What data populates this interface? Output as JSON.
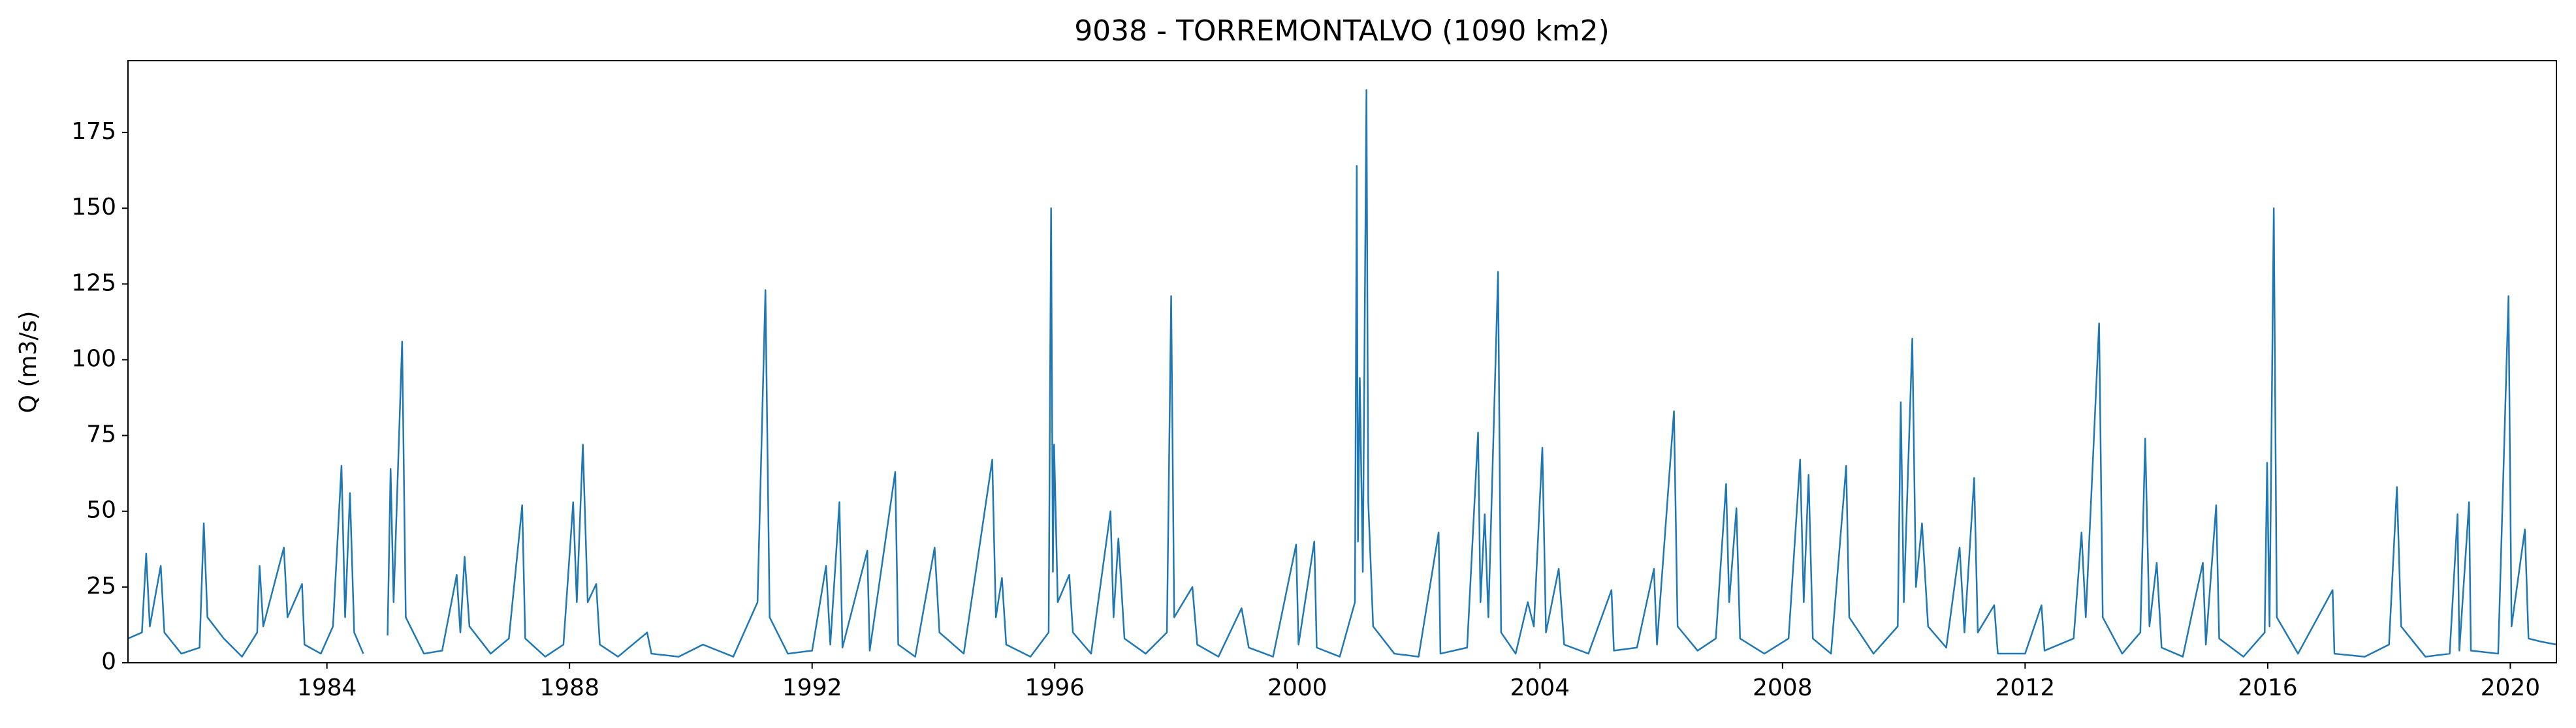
{
  "chart_data": {
    "type": "line",
    "title": "9038 - TORREMONTALVO (1090 km2)",
    "y_label": "Q (m3/s)",
    "xlim": [
      1980.72,
      2020.76
    ],
    "xticks": [
      1984,
      1988,
      1992,
      1996,
      2000,
      2004,
      2008,
      2012,
      2016,
      2020
    ],
    "ylim": [
      0,
      198.7
    ],
    "yticks": [
      0,
      25,
      50,
      75,
      100,
      125,
      150,
      175
    ],
    "grid": false,
    "series": [
      {
        "name": "Q",
        "color": "#1f77b4",
        "x": [
          1980.72,
          1980.95,
          1981.02,
          1981.08,
          1981.26,
          1981.32,
          1981.6,
          1981.9,
          1981.97,
          1982.03,
          1982.3,
          1982.6,
          1982.85,
          1982.89,
          1982.95,
          1983.29,
          1983.35,
          1983.59,
          1983.63,
          1983.9,
          1984.1,
          1984.24,
          1984.3,
          1984.38,
          1984.45,
          1984.6,
          1984.8,
          1985.0,
          1985.05,
          1985.1,
          1985.24,
          1985.3,
          1985.6,
          1985.9,
          1986.14,
          1986.2,
          1986.27,
          1986.35,
          1986.7,
          1987.0,
          1987.22,
          1987.27,
          1987.6,
          1987.9,
          1988.06,
          1988.12,
          1988.22,
          1988.3,
          1988.44,
          1988.5,
          1988.8,
          1989.28,
          1989.35,
          1989.8,
          1990.2,
          1990.7,
          1991.1,
          1991.23,
          1991.3,
          1991.6,
          1992.0,
          1992.23,
          1992.3,
          1992.45,
          1992.5,
          1992.91,
          1992.95,
          1993.37,
          1993.42,
          1993.7,
          1994.02,
          1994.1,
          1994.5,
          1994.97,
          1995.03,
          1995.13,
          1995.2,
          1995.6,
          1995.9,
          1995.94,
          1995.97,
          1995.99,
          1996.05,
          1996.24,
          1996.3,
          1996.6,
          1996.92,
          1996.97,
          1997.05,
          1997.15,
          1997.5,
          1997.85,
          1997.92,
          1997.97,
          1998.27,
          1998.35,
          1998.7,
          1999.08,
          1999.2,
          1999.6,
          1999.98,
          2000.02,
          2000.28,
          2000.32,
          2000.7,
          2000.95,
          2000.98,
          2001.0,
          2001.03,
          2001.08,
          2001.14,
          2001.17,
          2001.25,
          2001.6,
          2002.0,
          2002.33,
          2002.36,
          2002.8,
          2002.98,
          2003.02,
          2003.09,
          2003.15,
          2003.31,
          2003.36,
          2003.6,
          2003.8,
          2003.9,
          2004.04,
          2004.1,
          2004.31,
          2004.4,
          2004.8,
          2005.18,
          2005.22,
          2005.6,
          2005.88,
          2005.93,
          2006.21,
          2006.27,
          2006.6,
          2006.9,
          2007.07,
          2007.12,
          2007.24,
          2007.3,
          2007.7,
          2008.1,
          2008.29,
          2008.35,
          2008.43,
          2008.5,
          2008.8,
          2009.05,
          2009.1,
          2009.5,
          2009.9,
          2009.95,
          2010.0,
          2010.14,
          2010.2,
          2010.3,
          2010.4,
          2010.7,
          2010.92,
          2011.0,
          2011.16,
          2011.22,
          2011.49,
          2011.55,
          2012.0,
          2012.27,
          2012.32,
          2012.8,
          2012.93,
          2013.0,
          2013.22,
          2013.28,
          2013.6,
          2013.9,
          2013.98,
          2014.05,
          2014.17,
          2014.25,
          2014.6,
          2014.93,
          2014.98,
          2015.15,
          2015.2,
          2015.6,
          2015.95,
          2015.99,
          2016.03,
          2016.1,
          2016.15,
          2016.5,
          2017.07,
          2017.1,
          2017.6,
          2018.0,
          2018.13,
          2018.2,
          2018.6,
          2019.0,
          2019.13,
          2019.16,
          2019.32,
          2019.35,
          2019.8,
          2019.97,
          2020.02,
          2020.24,
          2020.3,
          2020.5,
          2020.76
        ],
        "values": [
          8,
          10,
          36,
          12,
          32,
          10,
          3,
          5,
          46,
          15,
          8,
          2,
          10,
          32,
          12,
          38,
          15,
          26,
          6,
          3,
          12,
          65,
          15,
          56,
          10,
          3,
          null,
          9,
          64,
          20,
          106,
          15,
          3,
          4,
          29,
          10,
          35,
          12,
          3,
          8,
          52,
          8,
          2,
          6,
          53,
          20,
          72,
          20,
          26,
          6,
          2,
          10,
          3,
          2,
          6,
          2,
          20,
          123,
          15,
          3,
          4,
          32,
          6,
          53,
          5,
          37,
          4,
          63,
          6,
          2,
          38,
          10,
          3,
          67,
          15,
          28,
          6,
          2,
          10,
          150,
          30,
          72,
          20,
          29,
          10,
          3,
          50,
          15,
          41,
          8,
          3,
          10,
          121,
          15,
          25,
          6,
          2,
          18,
          5,
          2,
          39,
          6,
          40,
          5,
          2,
          20,
          164,
          40,
          94,
          30,
          189,
          53,
          12,
          3,
          2,
          43,
          3,
          5,
          76,
          20,
          49,
          15,
          129,
          10,
          3,
          20,
          12,
          71,
          10,
          31,
          6,
          3,
          24,
          4,
          5,
          31,
          6,
          83,
          12,
          4,
          8,
          59,
          20,
          51,
          8,
          3,
          8,
          67,
          20,
          62,
          8,
          3,
          65,
          15,
          3,
          12,
          86,
          20,
          107,
          25,
          46,
          12,
          5,
          38,
          10,
          61,
          10,
          19,
          3,
          3,
          19,
          4,
          8,
          43,
          15,
          112,
          15,
          3,
          10,
          74,
          12,
          33,
          5,
          2,
          33,
          6,
          52,
          8,
          2,
          10,
          66,
          12,
          150,
          15,
          3,
          24,
          3,
          2,
          6,
          58,
          12,
          2,
          3,
          49,
          4,
          53,
          4,
          3,
          121,
          12,
          44,
          8,
          7,
          6
        ]
      }
    ]
  }
}
